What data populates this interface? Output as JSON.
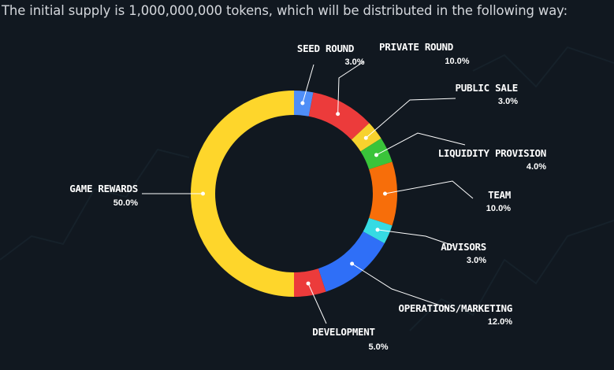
{
  "header": {
    "text": "The initial supply is 1,000,000,000 tokens, which will be distributed in the following way:"
  },
  "chart_data": {
    "type": "pie",
    "title": "",
    "colors": {
      "seed_round": "#4f8ef7",
      "private_round": "#ec3b3b",
      "public_sale": "#f7d22e",
      "liquidity_provision": "#3ac43a",
      "team": "#f76e0a",
      "advisors": "#36dbe3",
      "operations_marketing": "#2f6ff7",
      "development": "#ec3b3b",
      "game_rewards": "#fed62b"
    },
    "slices": [
      {
        "key": "seed_round",
        "label": "SEED ROUND",
        "value": 3.0,
        "display": "3.0%"
      },
      {
        "key": "private_round",
        "label": "PRIVATE ROUND",
        "value": 10.0,
        "display": "10.0%"
      },
      {
        "key": "public_sale",
        "label": "PUBLIC SALE",
        "value": 3.0,
        "display": "3.0%"
      },
      {
        "key": "liquidity_provision",
        "label": "LIQUIDITY PROVISION",
        "value": 4.0,
        "display": "4.0%"
      },
      {
        "key": "team",
        "label": "TEAM",
        "value": 10.0,
        "display": "10.0%"
      },
      {
        "key": "advisors",
        "label": "ADVISORS",
        "value": 3.0,
        "display": "3.0%"
      },
      {
        "key": "operations_marketing",
        "label": "OPERATIONS/MARKETING",
        "value": 12.0,
        "display": "12.0%"
      },
      {
        "key": "development",
        "label": "DEVELOPMENT",
        "value": 5.0,
        "display": "5.0%"
      },
      {
        "key": "game_rewards",
        "label": "GAME REWARDS",
        "value": 50.0,
        "display": "50.0%"
      }
    ]
  }
}
